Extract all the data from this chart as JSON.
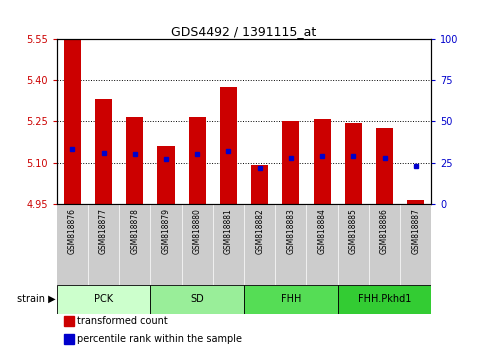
{
  "title": "GDS4492 / 1391115_at",
  "samples": [
    "GSM818876",
    "GSM818877",
    "GSM818878",
    "GSM818879",
    "GSM818880",
    "GSM818881",
    "GSM818882",
    "GSM818883",
    "GSM818884",
    "GSM818885",
    "GSM818886",
    "GSM818887"
  ],
  "red_values": [
    5.548,
    5.33,
    5.265,
    5.16,
    5.265,
    5.375,
    5.09,
    5.25,
    5.26,
    5.245,
    5.225,
    4.965
  ],
  "blue_values_pct": [
    33,
    31,
    30,
    27,
    30,
    32,
    22,
    28,
    29,
    29,
    28,
    23
  ],
  "y_min": 4.95,
  "y_max": 5.55,
  "y_ticks": [
    4.95,
    5.1,
    5.25,
    5.4,
    5.55
  ],
  "y2_ticks": [
    0,
    25,
    50,
    75,
    100
  ],
  "bar_color": "#cc0000",
  "dot_color": "#0000cc",
  "grid_color": "#000000",
  "strain_groups": [
    {
      "label": "PCK",
      "start": 0,
      "end": 2,
      "color": "#ccffcc"
    },
    {
      "label": "SD",
      "start": 3,
      "end": 5,
      "color": "#99ee99"
    },
    {
      "label": "FHH",
      "start": 6,
      "end": 8,
      "color": "#55dd55"
    },
    {
      "label": "FHH.Pkhd1",
      "start": 9,
      "end": 11,
      "color": "#33cc33"
    }
  ],
  "legend_items": [
    {
      "label": "transformed count",
      "color": "#cc0000"
    },
    {
      "label": "percentile rank within the sample",
      "color": "#0000cc"
    }
  ],
  "left_tick_color": "#cc0000",
  "right_tick_color": "#0000cc",
  "bg_color": "#ffffff",
  "tick_area_bg": "#cccccc"
}
